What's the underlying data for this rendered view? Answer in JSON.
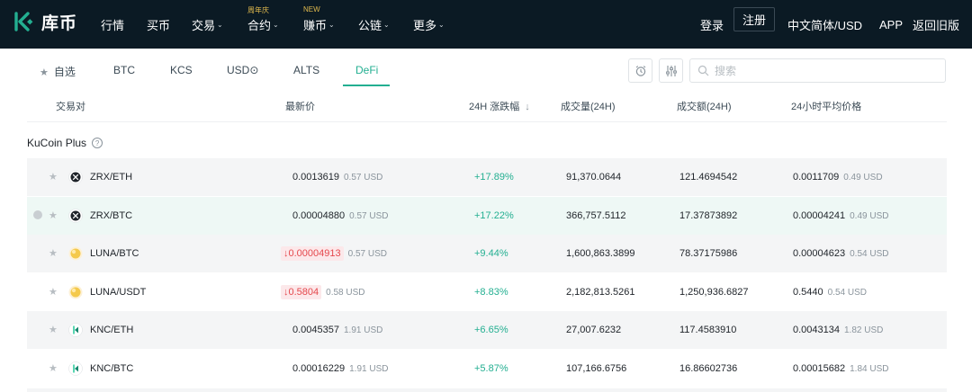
{
  "nav": {
    "logo_text": "库币",
    "items": [
      {
        "label": "行情",
        "caret": false,
        "badge": ""
      },
      {
        "label": "买币",
        "caret": false,
        "badge": ""
      },
      {
        "label": "交易",
        "caret": true,
        "badge": ""
      },
      {
        "label": "合约",
        "caret": true,
        "badge": "周年庆"
      },
      {
        "label": "赚币",
        "caret": true,
        "badge": "NEW"
      },
      {
        "label": "公链",
        "caret": true,
        "badge": ""
      },
      {
        "label": "更多",
        "caret": true,
        "badge": ""
      }
    ],
    "login": "登录",
    "register": "注册",
    "language": "中文简体/USD",
    "app": "APP",
    "old_version": "返回旧版"
  },
  "tabs": {
    "items": [
      "自选",
      "BTC",
      "KCS",
      "USD⊙",
      "ALTS",
      "DeFi"
    ],
    "active": "DeFi",
    "search_placeholder": "搜索"
  },
  "table": {
    "headers": [
      "交易对",
      "最新价",
      "24H 涨跌幅",
      "成交量(24H)",
      "成交额(24H)",
      "24小时平均价格"
    ],
    "sort_icon": "arrow-down-icon",
    "section": "KuCoin Plus",
    "rows": [
      {
        "pair": "ZRX/ETH",
        "coin": "ZRX",
        "price": "0.0013619",
        "price_usd": "0.57 USD",
        "price_down": false,
        "change": "+17.89%",
        "volume": "91,370.0644",
        "turnover": "121.4694542",
        "avg": "0.0011709",
        "avg_usd": "0.49 USD"
      },
      {
        "pair": "ZRX/BTC",
        "coin": "ZRX",
        "price": "0.00004880",
        "price_usd": "0.57 USD",
        "price_down": false,
        "change": "+17.22%",
        "volume": "366,757.5112",
        "turnover": "17.37873892",
        "avg": "0.00004241",
        "avg_usd": "0.49 USD"
      },
      {
        "pair": "LUNA/BTC",
        "coin": "LUNA",
        "price": "0.00004913",
        "price_usd": "0.57 USD",
        "price_down": true,
        "change": "+9.44%",
        "volume": "1,600,863.3899",
        "turnover": "78.37175986",
        "avg": "0.00004623",
        "avg_usd": "0.54 USD"
      },
      {
        "pair": "LUNA/USDT",
        "coin": "LUNA",
        "price": "0.5804",
        "price_usd": "0.58 USD",
        "price_down": true,
        "change": "+8.83%",
        "volume": "2,182,813.5261",
        "turnover": "1,250,936.6827",
        "avg": "0.5440",
        "avg_usd": "0.54 USD"
      },
      {
        "pair": "KNC/ETH",
        "coin": "KNC",
        "price": "0.0045357",
        "price_usd": "1.91 USD",
        "price_down": false,
        "change": "+6.65%",
        "volume": "27,007.6232",
        "turnover": "117.4583910",
        "avg": "0.0043134",
        "avg_usd": "1.82 USD"
      },
      {
        "pair": "KNC/BTC",
        "coin": "KNC",
        "price": "0.00016229",
        "price_usd": "1.91 USD",
        "price_down": false,
        "change": "+5.87%",
        "volume": "107,166.6756",
        "turnover": "16.86602736",
        "avg": "0.00015682",
        "avg_usd": "1.84 USD"
      }
    ]
  },
  "colors": {
    "accent": "#23af91",
    "nav_bg": "#0b1a24",
    "down": "#e5484d",
    "badge": "#e0b94d"
  },
  "icons": {
    "logo": "kucoin-logo-icon",
    "alarm": "alarm-clock-icon",
    "filter": "filter-sliders-icon",
    "search": "search-icon",
    "star": "star-icon",
    "help": "help-circle-icon",
    "down_arrow": "arrow-down-icon"
  }
}
